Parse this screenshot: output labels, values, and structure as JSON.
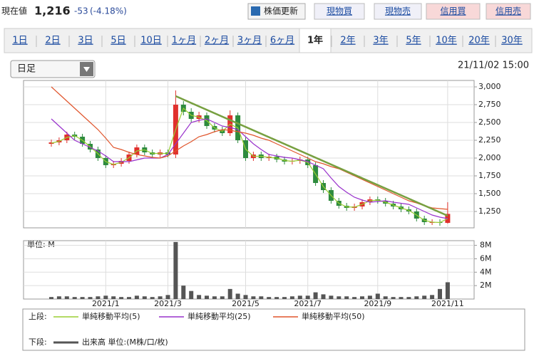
{
  "header": {
    "price_label": "現在値",
    "price": "1,216",
    "change": "-53",
    "change_pct": "(-4.18%)",
    "refresh": "株価更新",
    "buttons": [
      "現物買",
      "現物売",
      "信用買",
      "信用売"
    ]
  },
  "tabs": [
    "1日",
    "2日",
    "3日",
    "5日",
    "10日",
    "1ヶ月",
    "2ヶ月",
    "3ヶ月",
    "6ヶ月",
    "1年",
    "2年",
    "3年",
    "5年",
    "10年",
    "20年",
    "30年"
  ],
  "active_tab": 9,
  "period_select": "日足",
  "timestamp": "21/11/02 15:00",
  "chart_data": {
    "type": "candlestick",
    "categories": [
      null,
      null,
      null,
      null,
      null,
      null,
      null,
      "2021/1",
      null,
      null,
      null,
      null,
      null,
      null,
      null,
      "2021/3",
      null,
      null,
      null,
      null,
      null,
      null,
      null,
      null,
      null,
      "2021/5",
      null,
      null,
      null,
      null,
      null,
      null,
      null,
      "2021/7",
      null,
      null,
      null,
      null,
      null,
      null,
      null,
      null,
      "2021/9",
      null,
      null,
      null,
      null,
      null,
      null,
      null,
      null,
      "2021/11"
    ],
    "open": [
      2200,
      2220,
      2250,
      2330,
      2300,
      2200,
      2120,
      2000,
      1900,
      1920,
      1960,
      2050,
      2150,
      2080,
      2050,
      2080,
      2050,
      2750,
      2650,
      2550,
      2600,
      2450,
      2400,
      2350,
      2600,
      2250,
      2000,
      2050,
      2000,
      2020,
      1980,
      1950,
      1960,
      1980,
      1900,
      1650,
      1550,
      1400,
      1330,
      1300,
      1320,
      1380,
      1420,
      1400,
      1360,
      1320,
      1280,
      1250,
      1150,
      1100,
      1100,
      1090
    ],
    "high": [
      2260,
      2290,
      2370,
      2370,
      2340,
      2240,
      2160,
      2040,
      1960,
      2000,
      2090,
      2190,
      2190,
      2120,
      2120,
      2120,
      2950,
      2800,
      2700,
      2650,
      2640,
      2490,
      2440,
      2670,
      2640,
      2290,
      2090,
      2090,
      2060,
      2060,
      2020,
      2000,
      2020,
      2020,
      1940,
      1690,
      1590,
      1440,
      1370,
      1360,
      1420,
      1460,
      1460,
      1440,
      1400,
      1360,
      1320,
      1290,
      1190,
      1140,
      1140,
      1380
    ],
    "low": [
      2160,
      2180,
      2210,
      2260,
      2160,
      2080,
      1960,
      1860,
      1860,
      1880,
      1920,
      2010,
      2040,
      2010,
      2010,
      2010,
      2000,
      2600,
      2500,
      2500,
      2410,
      2360,
      2310,
      2310,
      2210,
      1960,
      1960,
      1960,
      1960,
      1940,
      1910,
      1910,
      1920,
      1860,
      1610,
      1510,
      1360,
      1290,
      1260,
      1260,
      1280,
      1340,
      1360,
      1320,
      1280,
      1240,
      1210,
      1110,
      1060,
      1060,
      1050,
      1080
    ],
    "close": [
      2220,
      2250,
      2330,
      2300,
      2200,
      2120,
      2000,
      1900,
      1920,
      1960,
      2050,
      2150,
      2080,
      2050,
      2080,
      2050,
      2750,
      2650,
      2550,
      2600,
      2450,
      2400,
      2350,
      2600,
      2250,
      2000,
      2050,
      2000,
      2020,
      1980,
      1950,
      1960,
      1980,
      1900,
      1650,
      1550,
      1400,
      1330,
      1300,
      1320,
      1380,
      1420,
      1400,
      1360,
      1320,
      1280,
      1250,
      1150,
      1100,
      1100,
      1090,
      1216
    ],
    "up_color": "#e0302c",
    "down_color": "#2e8b3e",
    "series": [
      {
        "name": "単純移動平均(5)",
        "color": "#9acd32",
        "values": [
          2210,
          2235,
          2290,
          2315,
          2250,
          2160,
          2060,
          1950,
          1910,
          1940,
          2005,
          2100,
          2115,
          2065,
          2065,
          2065,
          2400,
          2700,
          2600,
          2575,
          2525,
          2425,
          2375,
          2475,
          2425,
          2125,
          2025,
          2025,
          2010,
          2000,
          1965,
          1955,
          1970,
          1940,
          1775,
          1600,
          1475,
          1365,
          1315,
          1310,
          1350,
          1400,
          1410,
          1380,
          1340,
          1300,
          1265,
          1200,
          1125,
          1100,
          1095,
          1150
        ]
      },
      {
        "name": "単純移動平均(25)",
        "color": "#9932cc",
        "values": [
          2550,
          2450,
          2350,
          2250,
          2200,
          2150,
          2100,
          2030,
          1950,
          1950,
          1950,
          1975,
          2000,
          2000,
          2000,
          2050,
          2200,
          2350,
          2500,
          2530,
          2550,
          2500,
          2450,
          2430,
          2400,
          2300,
          2200,
          2120,
          2050,
          2030,
          2010,
          2000,
          1975,
          1950,
          1900,
          1850,
          1720,
          1600,
          1520,
          1450,
          1410,
          1380,
          1390,
          1400,
          1380,
          1365,
          1350,
          1300,
          1250,
          1200,
          1170,
          1150
        ]
      },
      {
        "name": "単純移動平均(50)",
        "color": "#e0552c",
        "values": [
          3000,
          2900,
          2800,
          2700,
          2600,
          2500,
          2400,
          2280,
          2150,
          2120,
          2080,
          2050,
          2030,
          2010,
          2000,
          2030,
          2100,
          2170,
          2230,
          2300,
          2330,
          2370,
          2400,
          2390,
          2370,
          2350,
          2320,
          2280,
          2250,
          2200,
          2150,
          2100,
          2050,
          2000,
          1950,
          1920,
          1880,
          1850,
          1800,
          1750,
          1700,
          1650,
          1600,
          1550,
          1500,
          1450,
          1400,
          1370,
          1330,
          1300,
          1290,
          1280
        ]
      }
    ],
    "trend_line": {
      "color": "#77a040",
      "index": [
        16,
        51
      ],
      "values": [
        2870,
        1190
      ]
    },
    "ylim": [
      1020,
      3090
    ],
    "yticks": [
      {
        "value": 3000,
        "label": "3,000"
      },
      {
        "value": 2750,
        "label": "2,750"
      },
      {
        "value": 2500,
        "label": "2,500"
      },
      {
        "value": 2250,
        "label": "2,250"
      },
      {
        "value": 2000,
        "label": "2,000"
      },
      {
        "value": 1750,
        "label": "1,750"
      },
      {
        "value": 1500,
        "label": "1,500"
      },
      {
        "value": 1250,
        "label": "1,250"
      }
    ],
    "grid": true,
    "volume": {
      "name": "出来高 単位:(M株/口/枚)",
      "unit_label": "単位: M",
      "color": "#555555",
      "values": [
        0.3,
        0.4,
        0.4,
        0.3,
        0.3,
        0.3,
        0.4,
        0.5,
        0.4,
        0.3,
        0.3,
        0.5,
        0.4,
        0.3,
        0.4,
        0.6,
        8.5,
        2.0,
        1.2,
        0.6,
        0.5,
        0.4,
        0.4,
        1.5,
        0.8,
        0.6,
        0.4,
        0.4,
        0.3,
        0.3,
        0.3,
        0.4,
        0.5,
        0.5,
        1.0,
        0.7,
        0.5,
        0.4,
        0.4,
        0.3,
        0.4,
        0.5,
        0.8,
        0.4,
        0.3,
        0.3,
        0.3,
        0.4,
        0.5,
        0.6,
        1.5,
        2.5
      ],
      "ylim": [
        0,
        8.7
      ],
      "yticks": [
        {
          "value": 8,
          "label": "8M"
        },
        {
          "value": 6,
          "label": "6M"
        },
        {
          "value": 4,
          "label": "4M"
        },
        {
          "value": 2,
          "label": "2M"
        }
      ]
    },
    "legend_upper": "上段:",
    "legend_lower": "下段:"
  }
}
